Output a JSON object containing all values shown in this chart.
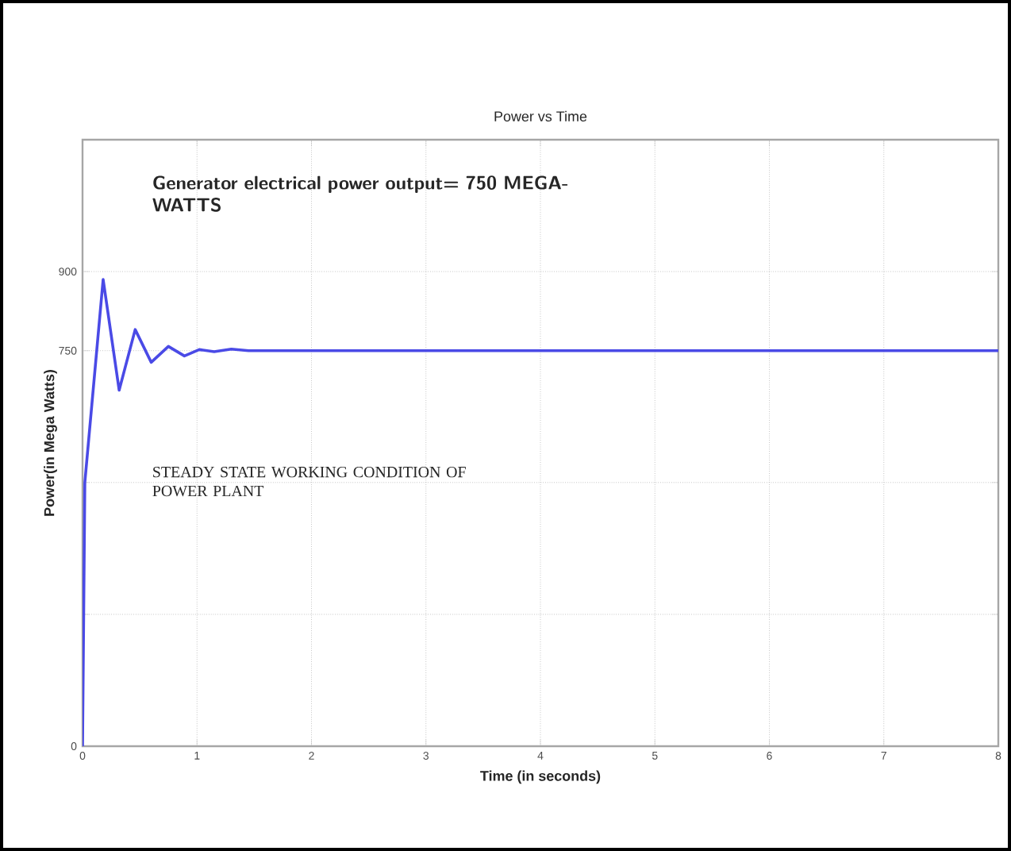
{
  "chart_data": {
    "type": "line",
    "title": "Power vs Time",
    "xlabel": "Time (in seconds)",
    "ylabel": "Power(in Mega Watts)",
    "x": [
      0,
      0.02,
      0.18,
      0.32,
      0.46,
      0.6,
      0.75,
      0.89,
      1.02,
      1.15,
      1.3,
      1.45,
      2,
      3,
      4,
      5,
      6,
      7,
      8
    ],
    "series": [
      {
        "color": "#4a4ae6",
        "values": [
          0,
          500,
          885,
          675,
          790,
          728,
          758,
          740,
          752,
          748,
          753,
          750,
          750,
          750,
          750,
          750,
          750,
          750,
          750
        ]
      }
    ],
    "xlim": [
      0,
      8
    ],
    "ylim": [
      0,
      1150
    ],
    "xticks": [
      0,
      1,
      2,
      3,
      4,
      5,
      6,
      7,
      8
    ],
    "yticks": [
      0,
      {
        "value": 250,
        "label": null
      },
      {
        "value": 500,
        "label": null
      },
      750,
      900
    ],
    "grid": true,
    "marker": "none",
    "line_style": "solid",
    "annotations": [
      "Generator electrical power output= 750 MEGA-WATTS",
      "STEADY STATE WORKING CONDITION OF POWER PLANT"
    ]
  }
}
